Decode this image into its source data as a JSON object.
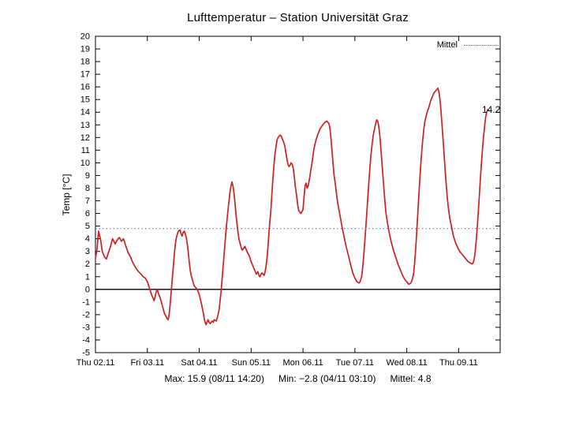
{
  "title": "Lufttemperatur – Station Universität Graz",
  "annotation": "14.2",
  "footer": {
    "max": "Max: 15.9 (08/11 14:20)",
    "min": "Min: −2.8 (04/11 03:10)",
    "mean": "Mittel:  4.8"
  },
  "colors": {
    "line": "#cc2222",
    "mean_line": "#5566cc",
    "zero_line": "#000000",
    "background": "#ffffff",
    "text": "#000000"
  },
  "chart_data": {
    "type": "line",
    "title": "Lufttemperatur – Station Universität Graz",
    "xlabel": "",
    "ylabel": "Temp [°C]",
    "ylim": [
      -5,
      20
    ],
    "y_tick_step": 1,
    "xlim": [
      0,
      7.8
    ],
    "grid": false,
    "legend_position": "top-right",
    "x_ticks": [
      {
        "day": 0,
        "label": "Thu 02.11"
      },
      {
        "day": 1,
        "label": "Fri 03.11"
      },
      {
        "day": 2,
        "label": "Sat 04.11"
      },
      {
        "day": 3,
        "label": "Sun 05.11"
      },
      {
        "day": 4,
        "label": "Mon 06.11"
      },
      {
        "day": 5,
        "label": "Tue 07.11"
      },
      {
        "day": 6,
        "label": "Wed 08.11"
      },
      {
        "day": 7,
        "label": "Thu 09.11"
      }
    ],
    "mean_line": {
      "label": "Mittel",
      "value": 4.8,
      "color": "#5566cc"
    },
    "zero_line": {
      "value": 0,
      "color": "#000000"
    },
    "stats": {
      "max": 15.9,
      "max_time": "08/11 14:20",
      "min": -2.8,
      "min_time": "04/11 03:10",
      "mean": 4.8,
      "last": 14.2
    },
    "series": [
      {
        "name": "Lufttemperatur",
        "color": "#cc2222",
        "points": [
          [
            0.0,
            2.4
          ],
          [
            0.03,
            3.2
          ],
          [
            0.06,
            4.6
          ],
          [
            0.1,
            3.9
          ],
          [
            0.13,
            3.0
          ],
          [
            0.17,
            2.6
          ],
          [
            0.21,
            2.4
          ],
          [
            0.25,
            2.9
          ],
          [
            0.29,
            3.4
          ],
          [
            0.33,
            4.0
          ],
          [
            0.38,
            3.6
          ],
          [
            0.42,
            3.9
          ],
          [
            0.46,
            4.1
          ],
          [
            0.5,
            3.8
          ],
          [
            0.54,
            4.0
          ],
          [
            0.58,
            3.5
          ],
          [
            0.63,
            2.9
          ],
          [
            0.67,
            2.6
          ],
          [
            0.71,
            2.2
          ],
          [
            0.75,
            1.9
          ],
          [
            0.79,
            1.6
          ],
          [
            0.83,
            1.4
          ],
          [
            0.88,
            1.2
          ],
          [
            0.92,
            1.0
          ],
          [
            0.96,
            0.9
          ],
          [
            1.0,
            0.6
          ],
          [
            1.04,
            0.1
          ],
          [
            1.08,
            -0.4
          ],
          [
            1.13,
            -0.9
          ],
          [
            1.15,
            -0.6
          ],
          [
            1.17,
            -0.2
          ],
          [
            1.19,
            0.0
          ],
          [
            1.21,
            -0.3
          ],
          [
            1.25,
            -0.7
          ],
          [
            1.29,
            -1.3
          ],
          [
            1.33,
            -1.9
          ],
          [
            1.38,
            -2.3
          ],
          [
            1.4,
            -2.4
          ],
          [
            1.42,
            -2.0
          ],
          [
            1.44,
            -1.2
          ],
          [
            1.46,
            -0.2
          ],
          [
            1.48,
            0.8
          ],
          [
            1.5,
            1.8
          ],
          [
            1.52,
            2.8
          ],
          [
            1.54,
            3.6
          ],
          [
            1.56,
            4.1
          ],
          [
            1.58,
            4.4
          ],
          [
            1.6,
            4.6
          ],
          [
            1.63,
            4.7
          ],
          [
            1.65,
            4.4
          ],
          [
            1.67,
            4.2
          ],
          [
            1.69,
            4.5
          ],
          [
            1.71,
            4.6
          ],
          [
            1.73,
            4.4
          ],
          [
            1.75,
            4.1
          ],
          [
            1.77,
            3.6
          ],
          [
            1.79,
            2.9
          ],
          [
            1.81,
            2.1
          ],
          [
            1.83,
            1.4
          ],
          [
            1.85,
            1.0
          ],
          [
            1.88,
            0.6
          ],
          [
            1.9,
            0.3
          ],
          [
            1.92,
            0.2
          ],
          [
            1.96,
            0.0
          ],
          [
            2.0,
            -0.4
          ],
          [
            2.04,
            -1.1
          ],
          [
            2.08,
            -1.9
          ],
          [
            2.1,
            -2.4
          ],
          [
            2.13,
            -2.8
          ],
          [
            2.15,
            -2.6
          ],
          [
            2.17,
            -2.4
          ],
          [
            2.19,
            -2.6
          ],
          [
            2.21,
            -2.7
          ],
          [
            2.25,
            -2.5
          ],
          [
            2.27,
            -2.6
          ],
          [
            2.29,
            -2.4
          ],
          [
            2.33,
            -2.5
          ],
          [
            2.35,
            -2.2
          ],
          [
            2.38,
            -1.7
          ],
          [
            2.4,
            -1.0
          ],
          [
            2.42,
            -0.2
          ],
          [
            2.44,
            0.8
          ],
          [
            2.46,
            1.8
          ],
          [
            2.48,
            2.8
          ],
          [
            2.5,
            3.8
          ],
          [
            2.52,
            4.8
          ],
          [
            2.54,
            5.7
          ],
          [
            2.56,
            6.5
          ],
          [
            2.58,
            7.2
          ],
          [
            2.6,
            7.9
          ],
          [
            2.62,
            8.3
          ],
          [
            2.63,
            8.5
          ],
          [
            2.65,
            8.2
          ],
          [
            2.67,
            7.6
          ],
          [
            2.69,
            6.8
          ],
          [
            2.71,
            5.9
          ],
          [
            2.73,
            5.1
          ],
          [
            2.75,
            4.4
          ],
          [
            2.77,
            3.9
          ],
          [
            2.79,
            3.6
          ],
          [
            2.81,
            3.3
          ],
          [
            2.83,
            3.1
          ],
          [
            2.85,
            3.2
          ],
          [
            2.88,
            3.4
          ],
          [
            2.9,
            3.2
          ],
          [
            2.92,
            3.0
          ],
          [
            2.96,
            2.7
          ],
          [
            3.0,
            2.2
          ],
          [
            3.04,
            1.8
          ],
          [
            3.08,
            1.4
          ],
          [
            3.1,
            1.2
          ],
          [
            3.13,
            1.4
          ],
          [
            3.15,
            1.1
          ],
          [
            3.17,
            1.0
          ],
          [
            3.19,
            1.2
          ],
          [
            3.21,
            1.3
          ],
          [
            3.25,
            1.1
          ],
          [
            3.27,
            1.4
          ],
          [
            3.29,
            1.9
          ],
          [
            3.31,
            2.6
          ],
          [
            3.33,
            3.6
          ],
          [
            3.35,
            4.8
          ],
          [
            3.38,
            6.2
          ],
          [
            3.4,
            7.5
          ],
          [
            3.42,
            8.7
          ],
          [
            3.44,
            9.8
          ],
          [
            3.46,
            10.7
          ],
          [
            3.48,
            11.3
          ],
          [
            3.5,
            11.8
          ],
          [
            3.52,
            12.0
          ],
          [
            3.54,
            12.1
          ],
          [
            3.56,
            12.2
          ],
          [
            3.58,
            12.1
          ],
          [
            3.6,
            11.9
          ],
          [
            3.63,
            11.6
          ],
          [
            3.65,
            11.3
          ],
          [
            3.67,
            10.8
          ],
          [
            3.69,
            10.3
          ],
          [
            3.71,
            9.9
          ],
          [
            3.73,
            9.7
          ],
          [
            3.75,
            9.8
          ],
          [
            3.77,
            10.0
          ],
          [
            3.79,
            9.9
          ],
          [
            3.81,
            9.6
          ],
          [
            3.83,
            9.0
          ],
          [
            3.85,
            8.2
          ],
          [
            3.88,
            7.3
          ],
          [
            3.9,
            6.6
          ],
          [
            3.92,
            6.2
          ],
          [
            3.96,
            6.0
          ],
          [
            4.0,
            6.3
          ],
          [
            4.02,
            7.3
          ],
          [
            4.04,
            8.2
          ],
          [
            4.06,
            8.4
          ],
          [
            4.08,
            8.0
          ],
          [
            4.1,
            8.2
          ],
          [
            4.13,
            8.8
          ],
          [
            4.15,
            9.4
          ],
          [
            4.17,
            9.9
          ],
          [
            4.19,
            10.5
          ],
          [
            4.21,
            11.1
          ],
          [
            4.25,
            11.8
          ],
          [
            4.29,
            12.3
          ],
          [
            4.33,
            12.7
          ],
          [
            4.38,
            13.0
          ],
          [
            4.42,
            13.2
          ],
          [
            4.46,
            13.3
          ],
          [
            4.5,
            13.1
          ],
          [
            4.52,
            12.7
          ],
          [
            4.54,
            11.9
          ],
          [
            4.56,
            10.9
          ],
          [
            4.58,
            9.9
          ],
          [
            4.6,
            9.0
          ],
          [
            4.63,
            8.1
          ],
          [
            4.65,
            7.4
          ],
          [
            4.67,
            6.8
          ],
          [
            4.71,
            5.9
          ],
          [
            4.75,
            5.0
          ],
          [
            4.79,
            4.2
          ],
          [
            4.83,
            3.4
          ],
          [
            4.88,
            2.6
          ],
          [
            4.92,
            1.9
          ],
          [
            4.96,
            1.3
          ],
          [
            5.0,
            0.9
          ],
          [
            5.04,
            0.6
          ],
          [
            5.08,
            0.5
          ],
          [
            5.1,
            0.6
          ],
          [
            5.13,
            1.0
          ],
          [
            5.15,
            1.7
          ],
          [
            5.17,
            2.6
          ],
          [
            5.19,
            3.7
          ],
          [
            5.21,
            4.9
          ],
          [
            5.23,
            6.1
          ],
          [
            5.25,
            7.3
          ],
          [
            5.27,
            8.5
          ],
          [
            5.29,
            9.6
          ],
          [
            5.31,
            10.6
          ],
          [
            5.33,
            11.4
          ],
          [
            5.35,
            12.1
          ],
          [
            5.38,
            12.7
          ],
          [
            5.4,
            13.1
          ],
          [
            5.42,
            13.4
          ],
          [
            5.44,
            13.3
          ],
          [
            5.46,
            12.9
          ],
          [
            5.48,
            12.2
          ],
          [
            5.5,
            11.2
          ],
          [
            5.52,
            10.1
          ],
          [
            5.54,
            9.0
          ],
          [
            5.56,
            7.9
          ],
          [
            5.58,
            6.9
          ],
          [
            5.6,
            6.0
          ],
          [
            5.63,
            5.2
          ],
          [
            5.67,
            4.3
          ],
          [
            5.71,
            3.6
          ],
          [
            5.75,
            3.0
          ],
          [
            5.79,
            2.5
          ],
          [
            5.83,
            2.0
          ],
          [
            5.88,
            1.5
          ],
          [
            5.92,
            1.1
          ],
          [
            5.96,
            0.8
          ],
          [
            6.0,
            0.6
          ],
          [
            6.04,
            0.4
          ],
          [
            6.08,
            0.5
          ],
          [
            6.1,
            0.7
          ],
          [
            6.13,
            1.2
          ],
          [
            6.15,
            2.0
          ],
          [
            6.17,
            3.1
          ],
          [
            6.19,
            4.4
          ],
          [
            6.21,
            5.8
          ],
          [
            6.23,
            7.2
          ],
          [
            6.25,
            8.6
          ],
          [
            6.27,
            9.9
          ],
          [
            6.29,
            11.0
          ],
          [
            6.31,
            11.9
          ],
          [
            6.33,
            12.7
          ],
          [
            6.35,
            13.3
          ],
          [
            6.38,
            13.8
          ],
          [
            6.4,
            14.1
          ],
          [
            6.42,
            14.3
          ],
          [
            6.44,
            14.6
          ],
          [
            6.46,
            14.9
          ],
          [
            6.48,
            15.1
          ],
          [
            6.5,
            15.3
          ],
          [
            6.52,
            15.5
          ],
          [
            6.54,
            15.6
          ],
          [
            6.56,
            15.7
          ],
          [
            6.58,
            15.8
          ],
          [
            6.6,
            15.9
          ],
          [
            6.62,
            15.6
          ],
          [
            6.64,
            15.0
          ],
          [
            6.66,
            14.1
          ],
          [
            6.68,
            13.0
          ],
          [
            6.7,
            11.8
          ],
          [
            6.72,
            10.6
          ],
          [
            6.74,
            9.4
          ],
          [
            6.76,
            8.3
          ],
          [
            6.78,
            7.3
          ],
          [
            6.8,
            6.5
          ],
          [
            6.83,
            5.6
          ],
          [
            6.87,
            4.8
          ],
          [
            6.9,
            4.2
          ],
          [
            6.94,
            3.7
          ],
          [
            6.98,
            3.3
          ],
          [
            7.02,
            3.0
          ],
          [
            7.06,
            2.8
          ],
          [
            7.1,
            2.6
          ],
          [
            7.14,
            2.4
          ],
          [
            7.18,
            2.2
          ],
          [
            7.22,
            2.1
          ],
          [
            7.26,
            2.0
          ],
          [
            7.28,
            2.1
          ],
          [
            7.3,
            2.4
          ],
          [
            7.32,
            3.0
          ],
          [
            7.34,
            3.9
          ],
          [
            7.36,
            5.0
          ],
          [
            7.38,
            6.2
          ],
          [
            7.4,
            7.5
          ],
          [
            7.42,
            8.8
          ],
          [
            7.44,
            10.0
          ],
          [
            7.46,
            11.1
          ],
          [
            7.48,
            12.1
          ],
          [
            7.5,
            12.9
          ],
          [
            7.52,
            13.6
          ],
          [
            7.54,
            14.0
          ],
          [
            7.56,
            14.2
          ]
        ]
      }
    ]
  }
}
